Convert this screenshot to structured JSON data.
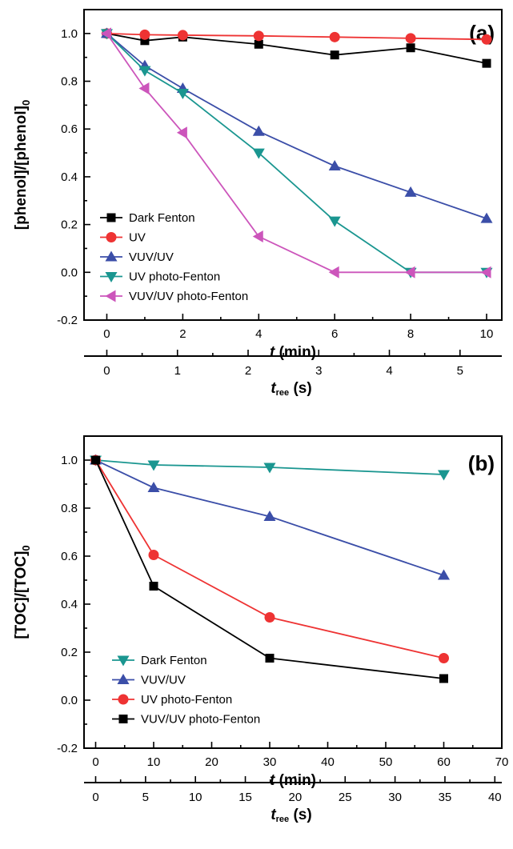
{
  "chart_data": [
    {
      "panel": "(a)",
      "type": "line",
      "ylabel_main": "[phenol]/[phenol]",
      "ylabel_sub": "0",
      "xlabel_var": "t",
      "xlabel_unit": " (min)",
      "x2label_var": "t",
      "x2label_sub": "ree",
      "x2label_unit": " (s)",
      "xlim": [
        -0.6,
        10.4
      ],
      "ylim": [
        -0.2,
        1.1
      ],
      "xticks": [
        0,
        2,
        4,
        6,
        8,
        10
      ],
      "yticks": [
        -0.2,
        0.0,
        0.2,
        0.4,
        0.6,
        0.8,
        1.0
      ],
      "ytick_labels": [
        "-0.2",
        "0.0",
        "0.2",
        "0.4",
        "0.6",
        "0.8",
        "1.0"
      ],
      "x2ticks": [
        0,
        1,
        2,
        3,
        4,
        5
      ],
      "x2ticks_major_pos_min": [
        0,
        1.86,
        3.72,
        5.58,
        7.44,
        9.3
      ],
      "x2_axis_max_min": 10.4,
      "series": [
        {
          "name": "Dark Fenton",
          "color": "#000000",
          "marker": "square",
          "x": [
            0,
            1,
            2,
            4,
            6,
            8,
            10
          ],
          "y": [
            1.0,
            0.97,
            0.985,
            0.955,
            0.91,
            0.94,
            0.875
          ]
        },
        {
          "name": "UV",
          "color": "#ee3333",
          "marker": "circle",
          "x": [
            0,
            1,
            2,
            4,
            6,
            8,
            10
          ],
          "y": [
            1.0,
            0.995,
            0.993,
            0.99,
            0.985,
            0.98,
            0.975
          ]
        },
        {
          "name": "VUV/UV",
          "color": "#3b4ea8",
          "marker": "triangle-up",
          "x": [
            0,
            1,
            2,
            4,
            6,
            8,
            10
          ],
          "y": [
            1.0,
            0.865,
            0.77,
            0.59,
            0.445,
            0.335,
            0.225
          ]
        },
        {
          "name": "UV photo-Fenton",
          "color": "#1a9690",
          "marker": "triangle-down",
          "x": [
            0,
            1,
            2,
            4,
            6,
            8,
            10
          ],
          "y": [
            1.0,
            0.845,
            0.75,
            0.5,
            0.215,
            0.0,
            0.0
          ]
        },
        {
          "name": "VUV/UV photo-Fenton",
          "color": "#cc55bb",
          "marker": "triangle-left",
          "x": [
            0,
            1,
            2,
            4,
            6,
            8,
            10
          ],
          "y": [
            1.0,
            0.77,
            0.585,
            0.15,
            0.0,
            0.0,
            0.0
          ]
        }
      ],
      "legend_position": "lower-left"
    },
    {
      "panel": "(b)",
      "type": "line",
      "ylabel_main": "[TOC]/[TOC]",
      "ylabel_sub": "0",
      "xlabel_var": "t",
      "xlabel_unit": " (min)",
      "x2label_var": "t",
      "x2label_sub": "ree",
      "x2label_unit": " (s)",
      "xlim": [
        -2,
        70
      ],
      "ylim": [
        -0.2,
        1.1
      ],
      "xticks": [
        0,
        10,
        20,
        30,
        40,
        50,
        60,
        70
      ],
      "yticks": [
        -0.2,
        0.0,
        0.2,
        0.4,
        0.6,
        0.8,
        1.0
      ],
      "ytick_labels": [
        "-0.2",
        "0.0",
        "0.2",
        "0.4",
        "0.6",
        "0.8",
        "1.0"
      ],
      "x2ticks": [
        0,
        5,
        10,
        15,
        20,
        25,
        30,
        35,
        40
      ],
      "x2ticks_major_pos_min": [
        0,
        8.6,
        17.2,
        25.8,
        34.4,
        43.0,
        51.6,
        60.2,
        68.8
      ],
      "x2_axis_max_min": 70,
      "series": [
        {
          "name": "Dark Fenton",
          "color": "#1a9690",
          "marker": "triangle-down",
          "x": [
            0,
            10,
            30,
            60
          ],
          "y": [
            1.0,
            0.98,
            0.97,
            0.94
          ]
        },
        {
          "name": "VUV/UV",
          "color": "#3b4ea8",
          "marker": "triangle-up",
          "x": [
            0,
            10,
            30,
            60
          ],
          "y": [
            1.0,
            0.885,
            0.765,
            0.52
          ]
        },
        {
          "name": "UV photo-Fenton",
          "color": "#ee3333",
          "marker": "circle",
          "x": [
            0,
            10,
            30,
            60
          ],
          "y": [
            1.0,
            0.605,
            0.345,
            0.175
          ]
        },
        {
          "name": "VUV/UV photo-Fenton",
          "color": "#000000",
          "marker": "square",
          "x": [
            0,
            10,
            30,
            60
          ],
          "y": [
            1.0,
            0.475,
            0.175,
            0.09
          ]
        }
      ],
      "legend_position": "lower-left"
    }
  ]
}
